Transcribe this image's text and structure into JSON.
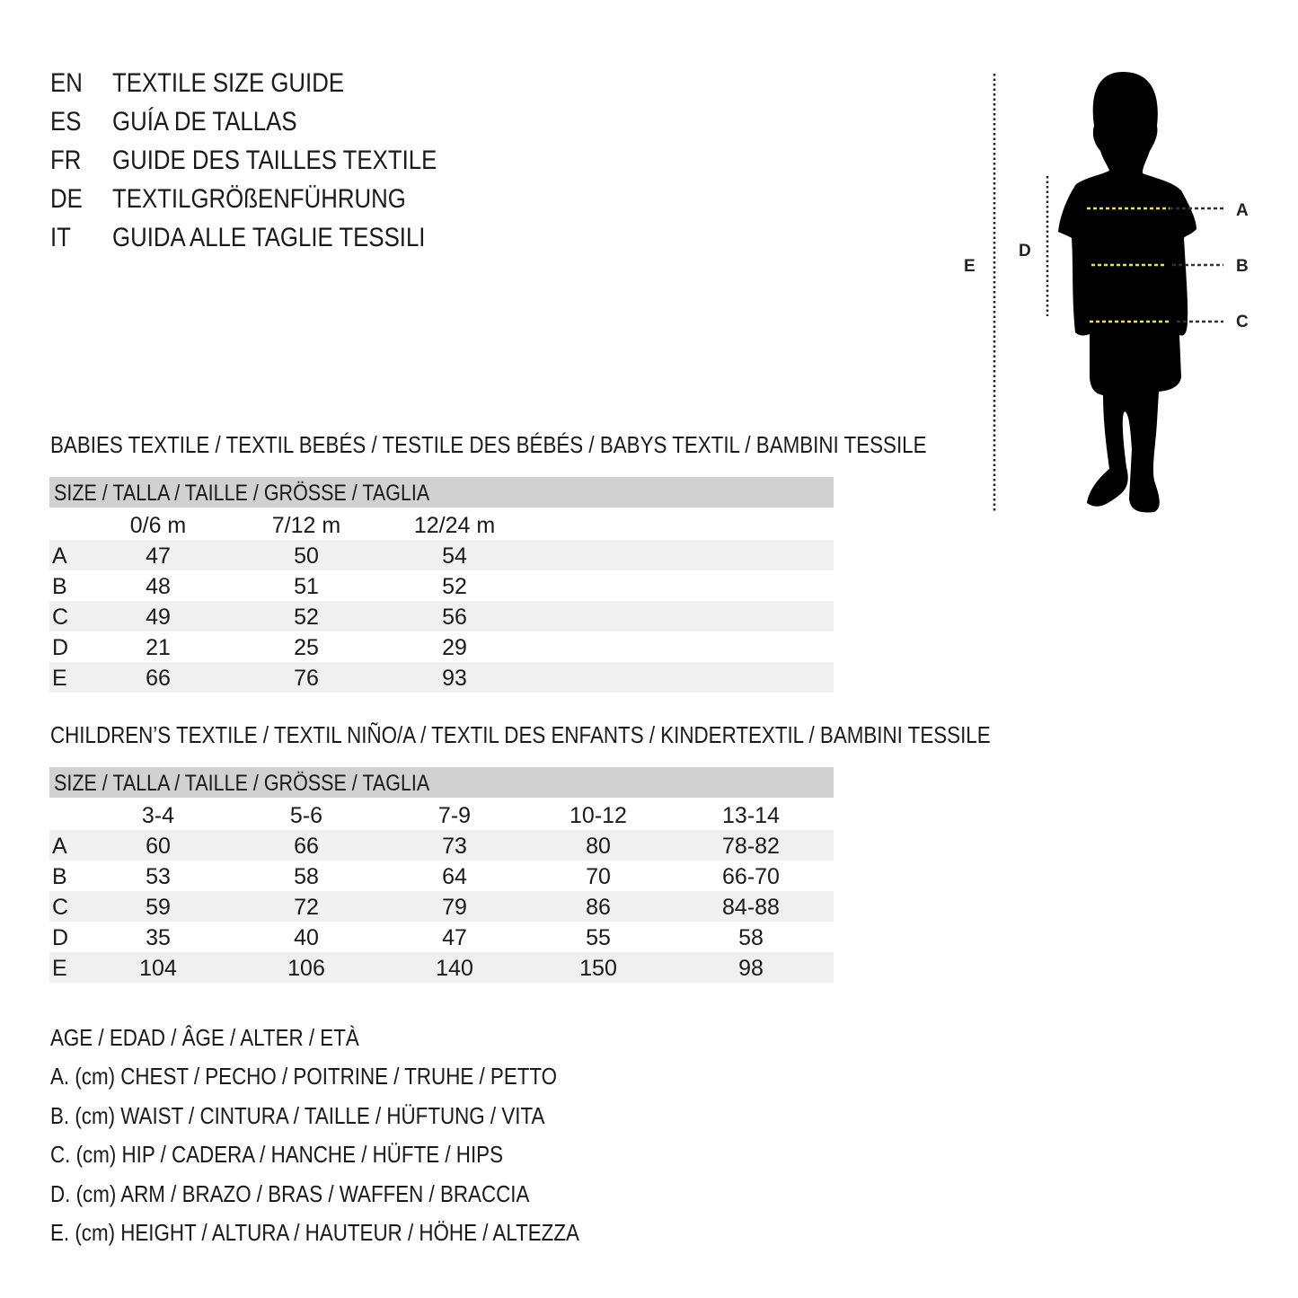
{
  "titles": [
    {
      "code": "EN",
      "text": "TEXTILE SIZE GUIDE"
    },
    {
      "code": "ES",
      "text": "GUÍA DE TALLAS"
    },
    {
      "code": "FR",
      "text": "GUIDE DES TAILLES TEXTILE"
    },
    {
      "code": "DE",
      "text": "TEXTILGRÖßENFÜHRUNG"
    },
    {
      "code": "IT",
      "text": "GUIDA ALLE TAGLIE TESSILI"
    }
  ],
  "figure": {
    "labels": {
      "A": "A",
      "B": "B",
      "C": "C",
      "D": "D",
      "E": "E"
    },
    "accent": "#f2e33a"
  },
  "babies": {
    "title": "BABIES TEXTILE / TEXTIL BEBÉS / TESTILE DES BÉBÉS / BABYS TEXTIL / BAMBINI TESSILE",
    "header": "SIZE / TALLA / TAILLE / GRÖSSE / TAGLIA",
    "columns": [
      "0/6 m",
      "7/12 m",
      "12/24 m"
    ],
    "rows": [
      {
        "label": "A",
        "values": [
          "47",
          "50",
          "54"
        ]
      },
      {
        "label": "B",
        "values": [
          "48",
          "51",
          "52"
        ]
      },
      {
        "label": "C",
        "values": [
          "49",
          "52",
          "56"
        ]
      },
      {
        "label": "D",
        "values": [
          "21",
          "25",
          "29"
        ]
      },
      {
        "label": "E",
        "values": [
          "66",
          "76",
          "93"
        ]
      }
    ]
  },
  "children": {
    "title": "CHILDREN’S TEXTILE / TEXTIL NIÑO/A / TEXTIL DES ENFANTS / KINDERTEXTIL / BAMBINI TESSILE",
    "header": "SIZE / TALLA / TAILLE / GRÖSSE / TAGLIA",
    "columns": [
      "3-4",
      "5-6",
      "7-9",
      "10-12",
      "13-14"
    ],
    "rows": [
      {
        "label": "A",
        "values": [
          "60",
          "66",
          "73",
          "80",
          "78-82"
        ]
      },
      {
        "label": "B",
        "values": [
          "53",
          "58",
          "64",
          "70",
          "66-70"
        ]
      },
      {
        "label": "C",
        "values": [
          "59",
          "72",
          "79",
          "86",
          "84-88"
        ]
      },
      {
        "label": "D",
        "values": [
          "35",
          "40",
          "47",
          "55",
          "58"
        ]
      },
      {
        "label": "E",
        "values": [
          "104",
          "106",
          "140",
          "150",
          "98"
        ]
      }
    ]
  },
  "legend": [
    "AGE / EDAD / ÂGE / ALTER / ETÀ",
    "A. (cm) CHEST / PECHO / POITRINE / TRUHE / PETTO",
    "B. (cm) WAIST / CINTURA / TAILLE / HÜFTUNG / VITA",
    "C. (cm) HIP / CADERA / HANCHE / HÜFTE / HIPS",
    "D. (cm) ARM / BRAZO / BRAS / WAFFEN / BRACCIA",
    "E. (cm) HEIGHT / ALTURA / HAUTEUR / HÖHE / ALTEZZA"
  ]
}
